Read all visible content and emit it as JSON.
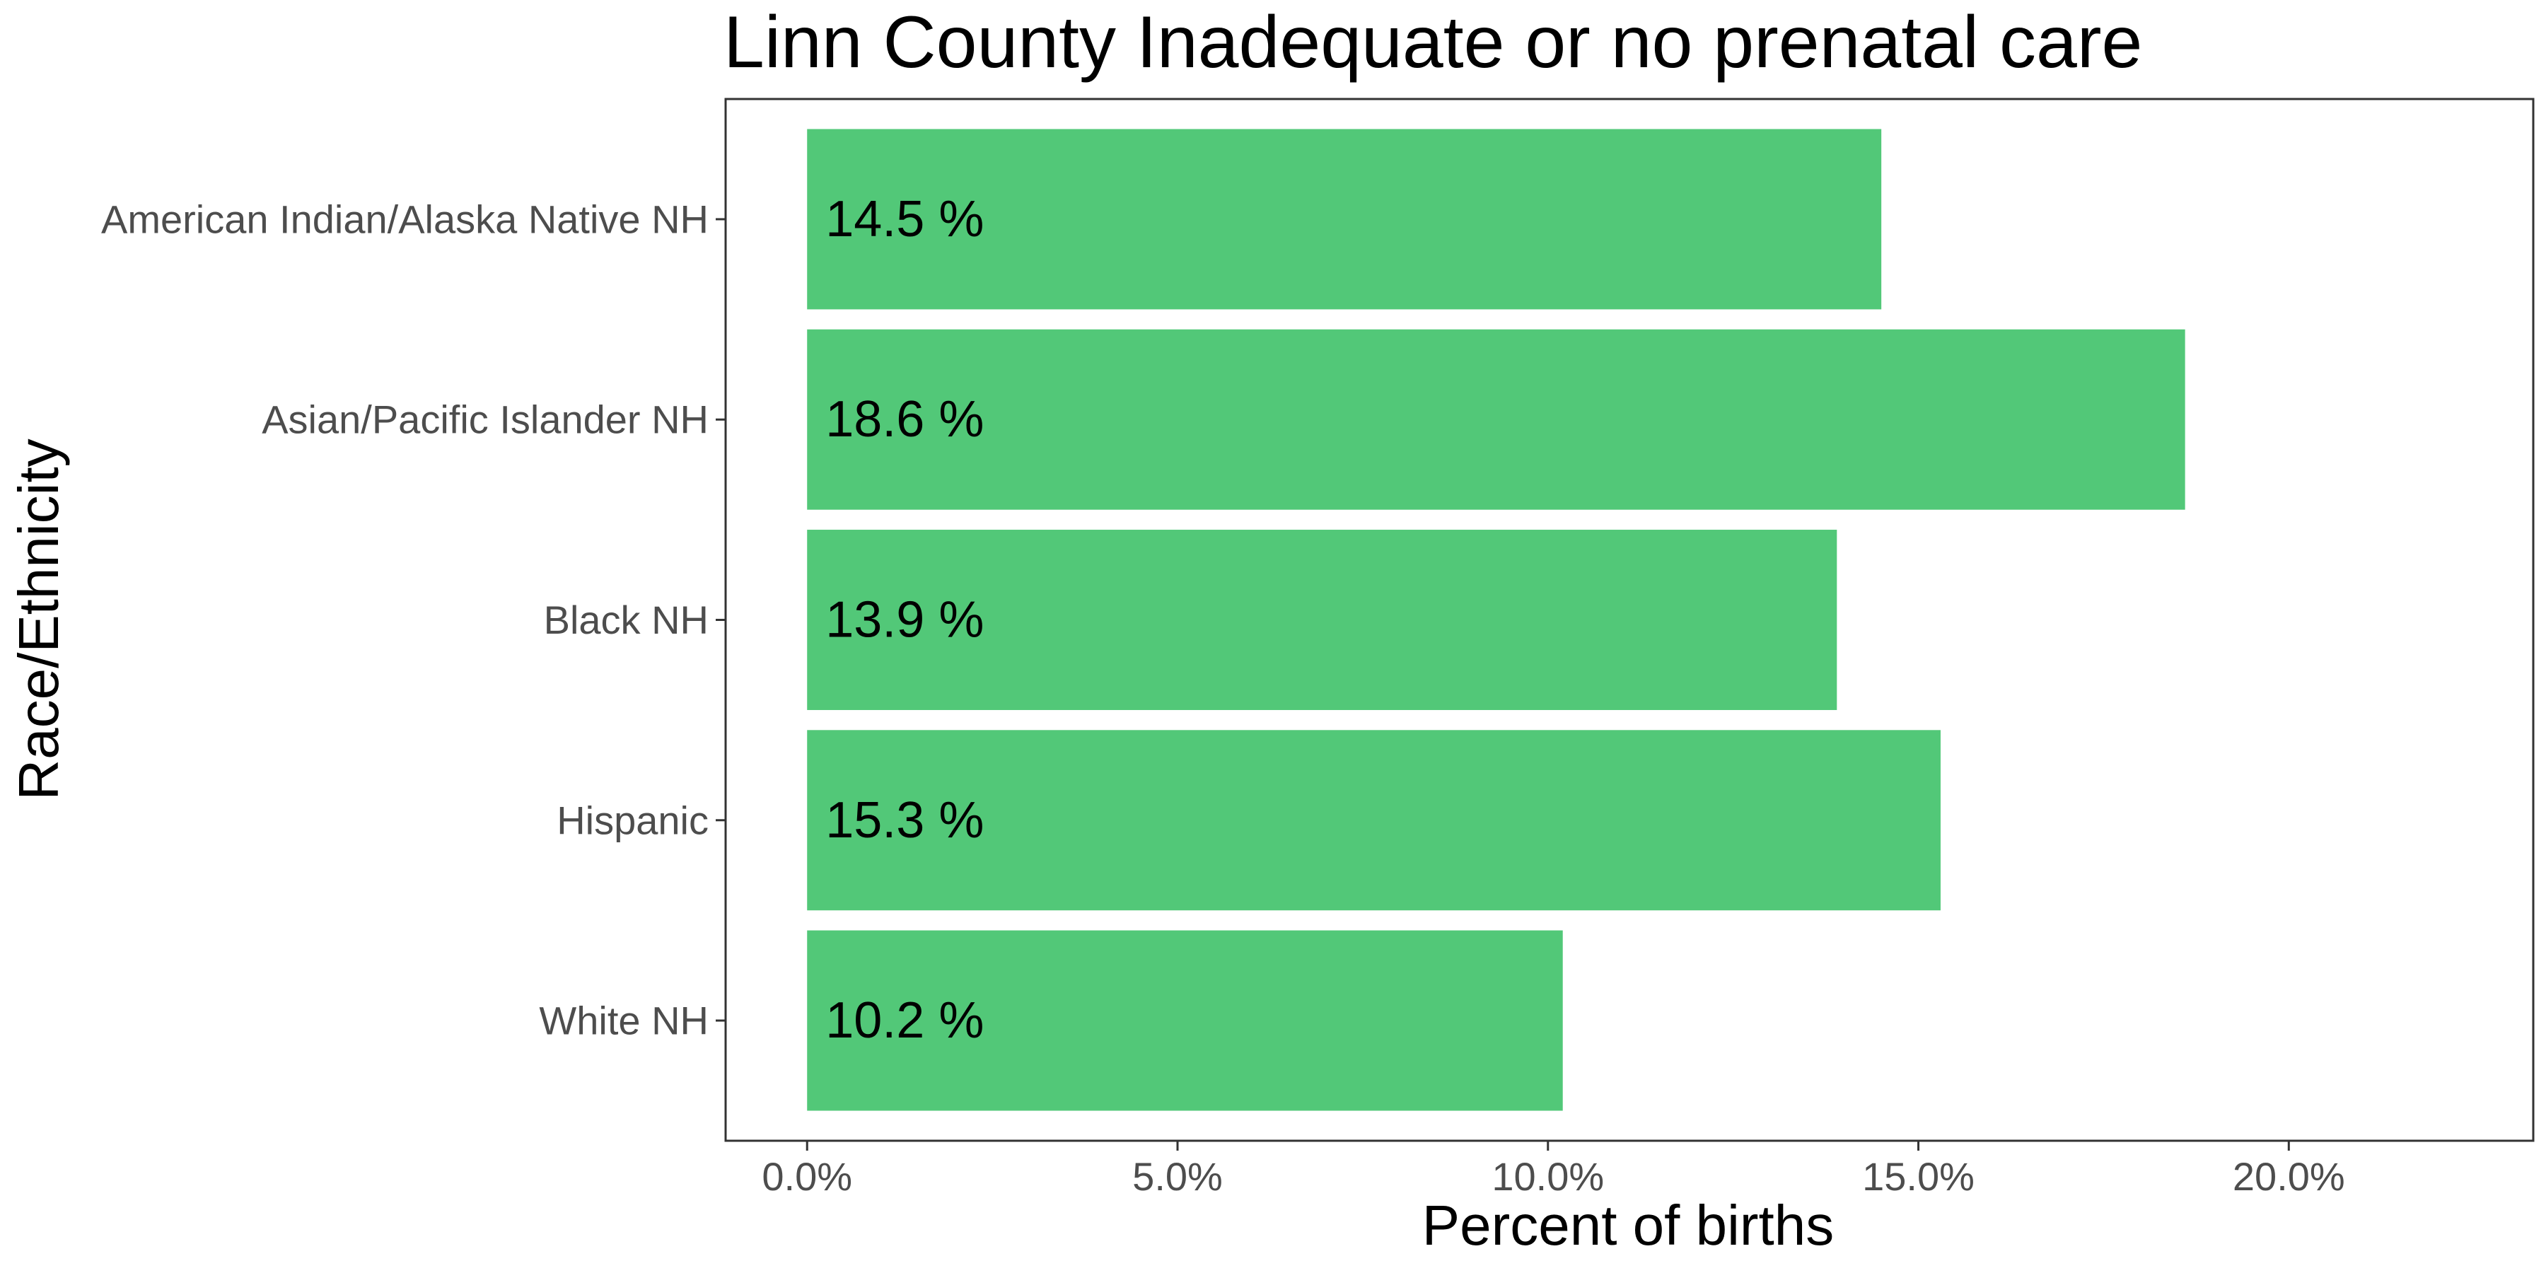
{
  "chart_data": {
    "type": "bar",
    "orientation": "horizontal",
    "title": "Linn County Inadequate or no prenatal care",
    "xlabel": "Percent of births",
    "ylabel": "Race/Ethnicity",
    "categories": [
      "American Indian/Alaska Native NH",
      "Asian/Pacific Islander NH",
      "Black NH",
      "Hispanic",
      "White NH"
    ],
    "values": [
      14.5,
      18.6,
      13.9,
      15.3,
      10.2
    ],
    "data_labels": [
      "14.5 %",
      "18.6 %",
      "13.9 %",
      "15.3 %",
      "10.2 %"
    ],
    "xticks": [
      0,
      5,
      10,
      15,
      20
    ],
    "xtick_labels": [
      "0.0%",
      "5.0%",
      "10.0%",
      "15.0%",
      "20.0%"
    ],
    "xlim": [
      -1.1,
      23.3
    ],
    "grid": false,
    "legend": "none",
    "bar_color": "#52c878"
  }
}
